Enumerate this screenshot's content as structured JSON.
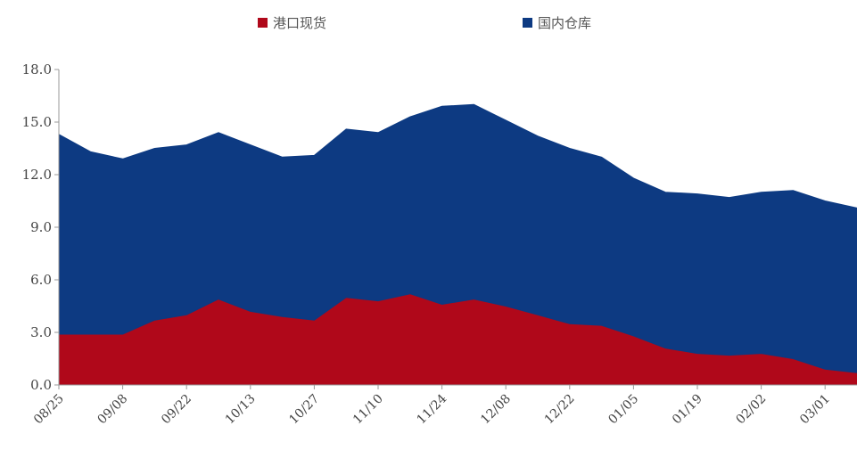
{
  "chart_data": {
    "type": "area",
    "stacked": true,
    "ylim": [
      0,
      18
    ],
    "yticks": [
      "0.0",
      "3.0",
      "6.0",
      "9.0",
      "12.0",
      "15.0",
      "18.0"
    ],
    "ytick_values": [
      0,
      3,
      6,
      9,
      12,
      15,
      18
    ],
    "x_tick_labels": [
      "08/25",
      "09/08",
      "09/22",
      "10/13",
      "10/27",
      "11/10",
      "11/24",
      "12/08",
      "12/22",
      "01/05",
      "01/19",
      "02/02",
      "03/01"
    ],
    "x": [
      0,
      1,
      2,
      3,
      4,
      5,
      6,
      7,
      8,
      9,
      10,
      11,
      12,
      13,
      14,
      15,
      16,
      17,
      18,
      19,
      20,
      21,
      22,
      23,
      24,
      25
    ],
    "legend_position": "top-center",
    "grid": false,
    "series": [
      {
        "name": "港口现货",
        "color": "#b0081a",
        "values": [
          2.9,
          2.9,
          2.9,
          3.7,
          4.0,
          4.9,
          4.2,
          3.9,
          3.7,
          5.0,
          4.8,
          5.2,
          4.6,
          4.9,
          4.5,
          4.0,
          3.5,
          3.4,
          2.8,
          2.1,
          1.8,
          1.7,
          1.8,
          1.5,
          0.9,
          0.7
        ]
      },
      {
        "name": "国内仓库",
        "color": "#0d3a82",
        "values": [
          11.4,
          10.4,
          10.0,
          9.8,
          9.7,
          9.5,
          9.5,
          9.1,
          9.4,
          9.6,
          9.6,
          10.1,
          11.3,
          11.1,
          10.6,
          10.2,
          10.0,
          9.6,
          9.0,
          8.9,
          9.1,
          9.0,
          9.2,
          9.6,
          9.6,
          9.4
        ]
      }
    ]
  }
}
